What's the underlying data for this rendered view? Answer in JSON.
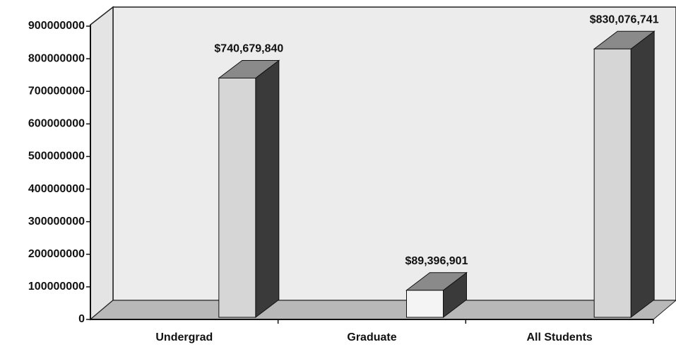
{
  "chart_data": {
    "type": "bar3d",
    "categories": [
      "Undergrad",
      "Graduate",
      "All Students"
    ],
    "values": [
      740679840,
      89396901,
      830076741
    ],
    "value_labels": [
      "$740,679,840",
      "$89,396,901",
      "$830,076,741"
    ],
    "ylim": [
      0,
      900000000
    ],
    "yticks": [
      0,
      100000000,
      200000000,
      300000000,
      400000000,
      500000000,
      600000000,
      700000000,
      800000000,
      900000000
    ]
  }
}
